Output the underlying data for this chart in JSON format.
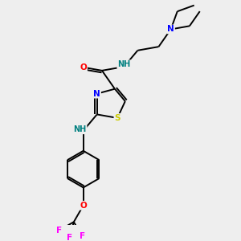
{
  "background_color": "#eeeeee",
  "bond_color": "#000000",
  "atom_colors": {
    "N": "#0000ff",
    "O": "#ff0000",
    "S": "#cccc00",
    "F": "#ff00ff",
    "NH": "#008080",
    "C": "#000000"
  },
  "figsize": [
    3.0,
    3.0
  ],
  "dpi": 100
}
